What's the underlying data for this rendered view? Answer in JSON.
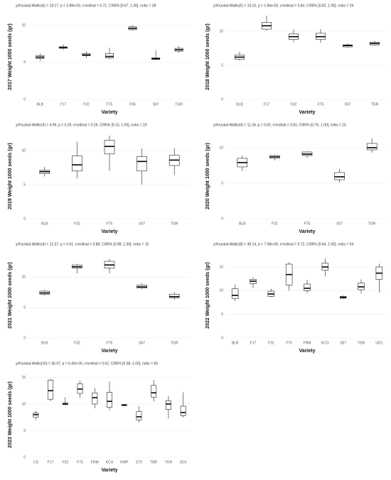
{
  "chart_data": [
    {
      "type": "box",
      "subtitle": "χ²Kruskal-Wallis(6) = 19.17, p = 3.89e-03, ε²ordinal = 0.71, CI95% [0.67, 1.00], nobs = 28",
      "ylabel": "2017 Weight 1000 seeds (gr)",
      "xlabel": "Variety",
      "categories": [
        "BLB",
        "F17",
        "F32",
        "F75",
        "F96",
        "S07",
        "TGR"
      ],
      "min": [
        5.2,
        6.7,
        5.6,
        5.4,
        9.3,
        5.3,
        6.3
      ],
      "q1": [
        5.5,
        6.9,
        5.9,
        5.6,
        9.4,
        5.4,
        6.5
      ],
      "median": [
        5.7,
        7.0,
        6.0,
        5.8,
        9.6,
        5.5,
        6.7
      ],
      "q3": [
        5.9,
        7.1,
        6.2,
        6.2,
        9.8,
        5.6,
        6.9
      ],
      "max": [
        6.2,
        7.4,
        6.5,
        7.0,
        10.0,
        6.6,
        7.2
      ],
      "ylim": [
        0,
        11.5
      ],
      "yticks": [
        0,
        5,
        10
      ]
    },
    {
      "type": "box",
      "subtitle": "χ²Kruskal-Wallis(5) = 19.10, p = 1.84e-03, ε²ordinal = 0.83, CI95% [0.82, 1.00], nobs = 24",
      "ylabel": "2018 Weight 1000 seeds (gr)",
      "xlabel": "Variety",
      "categories": [
        "BLB",
        "F17",
        "F32",
        "F75",
        "S07",
        "TGR"
      ],
      "min": [
        5.7,
        10.1,
        8.4,
        8.3,
        7.6,
        7.9
      ],
      "q1": [
        5.9,
        10.3,
        8.8,
        8.8,
        7.7,
        8.0
      ],
      "median": [
        6.2,
        10.8,
        9.2,
        9.2,
        7.9,
        8.2
      ],
      "q3": [
        6.5,
        11.3,
        9.6,
        9.7,
        8.0,
        8.4
      ],
      "max": [
        7.0,
        12.3,
        10.3,
        10.3,
        8.2,
        8.6
      ],
      "ylim": [
        0,
        12.5
      ],
      "yticks": [
        0,
        5,
        10
      ]
    },
    {
      "type": "box",
      "subtitle": "χ²Kruskal-Wallis(4) = 4.99, p = 0.29, ε²ordinal = 0.26, CI95% [0.15, 1.00], nobs = 20",
      "ylabel": "2019 Weight 1000 seeds (gr)",
      "xlabel": "Variety",
      "categories": [
        "BLB",
        "F32",
        "F75",
        "S07",
        "TGR"
      ],
      "min": [
        6.2,
        5.9,
        7.0,
        5.0,
        6.4
      ],
      "q1": [
        6.6,
        7.0,
        9.5,
        7.0,
        7.8
      ],
      "median": [
        6.9,
        7.9,
        10.6,
        8.4,
        8.6
      ],
      "q3": [
        7.1,
        9.2,
        11.5,
        9.1,
        9.3
      ],
      "max": [
        7.6,
        11.3,
        12.2,
        10.3,
        10.4
      ],
      "ylim": [
        0,
        12.5
      ],
      "yticks": [
        0,
        5,
        10
      ]
    },
    {
      "type": "box",
      "subtitle": "χ²Kruskal-Wallis(4) = 11.34, p = 0.02, ε²ordinal = 0.81, CI95% [0.76, 1.00], nobs = 15",
      "ylabel": "2020 Weight 1000 seeds (gr)",
      "xlabel": "Variety",
      "categories": [
        "BLB",
        "F32",
        "F75",
        "S07",
        "TGR"
      ],
      "min": [
        6.7,
        8.2,
        8.6,
        5.1,
        9.3
      ],
      "q1": [
        7.3,
        8.5,
        8.9,
        5.5,
        9.7
      ],
      "median": [
        7.9,
        8.7,
        9.1,
        5.9,
        10.0
      ],
      "q3": [
        8.5,
        8.9,
        9.4,
        6.5,
        10.6
      ],
      "max": [
        8.9,
        9.0,
        9.5,
        7.0,
        11.3
      ],
      "ylim": [
        0,
        12
      ],
      "yticks": [
        0,
        5,
        10
      ]
    },
    {
      "type": "box",
      "subtitle": "χ²Kruskal-Wallis(4) = 12.37, p = 0.01, ε²ordinal = 0.88, CI95% [0.88, 1.00], nobs = 15",
      "ylabel": "2021 Weight 1000 seeds (gr)",
      "xlabel": "Variety",
      "categories": [
        "BLB",
        "F32",
        "F75",
        "S07",
        "TGR"
      ],
      "min": [
        7.0,
        10.6,
        10.6,
        8.0,
        6.3
      ],
      "q1": [
        7.2,
        11.5,
        11.5,
        8.2,
        6.6
      ],
      "median": [
        7.4,
        11.7,
        12.0,
        8.4,
        6.8
      ],
      "q3": [
        7.7,
        12.0,
        12.6,
        8.7,
        7.2
      ],
      "max": [
        7.9,
        12.2,
        13.0,
        9.0,
        7.5
      ],
      "ylim": [
        0,
        14
      ],
      "yticks": [
        0,
        5,
        10
      ]
    },
    {
      "type": "box",
      "subtitle": "χ²Kruskal-Wallis(8) = 38.14, p = 7.08e-06, ε²ordinal = 0.72, CI95% [0.64, 1.00], nobs = 54",
      "ylabel": "2022 Weight 1000 seeds (gr)",
      "xlabel": "Variety",
      "categories": [
        "BLB",
        "F17",
        "F32",
        "F75",
        "FRM",
        "KCO",
        "S07",
        "TGR",
        "UD1"
      ],
      "min": [
        7.8,
        10.5,
        8.6,
        10.0,
        9.5,
        13.0,
        8.2,
        9.4,
        9.6
      ],
      "q1": [
        8.3,
        11.5,
        8.8,
        11.2,
        10.0,
        14.3,
        8.4,
        10.2,
        12.4
      ],
      "median": [
        9.0,
        12.0,
        9.3,
        13.4,
        10.5,
        15.0,
        8.6,
        10.8,
        13.7
      ],
      "q3": [
        10.4,
        12.4,
        9.9,
        15.6,
        11.4,
        15.8,
        8.8,
        11.6,
        15.0
      ],
      "max": [
        11.3,
        12.8,
        10.4,
        16.0,
        12.3,
        16.8,
        9.0,
        12.4,
        15.7
      ],
      "ylim": [
        0,
        18
      ],
      "yticks": [
        0,
        5,
        10,
        15
      ]
    },
    {
      "type": "box",
      "subtitle": "χ²Kruskal-Wallis(10) = 36.67, p = 6.45e-05, ε²ordinal = 0.62, CI95% [0.58, 1.00], nobs = 60",
      "ylabel": "2023 Weight 1000 seeds (gr)",
      "xlabel": "Variety",
      "categories": [
        "CS",
        "F17",
        "F32",
        "F75",
        "FRM",
        "KCO",
        "KMP",
        "S70",
        "TBR",
        "TGR",
        "UD1"
      ],
      "min": [
        7.0,
        10.5,
        9.8,
        11.2,
        9.2,
        8.8,
        9.6,
        6.5,
        10.5,
        7.3,
        7.5
      ],
      "q1": [
        7.5,
        10.9,
        9.9,
        12.0,
        10.0,
        9.4,
        9.7,
        7.0,
        11.3,
        9.0,
        7.8
      ],
      "median": [
        8.0,
        12.5,
        10.0,
        12.8,
        11.2,
        10.5,
        9.8,
        7.6,
        12.1,
        10.0,
        8.4
      ],
      "q3": [
        8.3,
        14.5,
        10.2,
        13.8,
        12.1,
        12.2,
        9.9,
        8.6,
        13.5,
        10.6,
        9.6
      ],
      "max": [
        8.7,
        14.8,
        11.3,
        14.4,
        13.0,
        14.2,
        10.0,
        9.6,
        14.5,
        11.5,
        12.2
      ],
      "ylim": [
        0,
        16
      ],
      "yticks": [
        0,
        5,
        10,
        15
      ]
    }
  ]
}
